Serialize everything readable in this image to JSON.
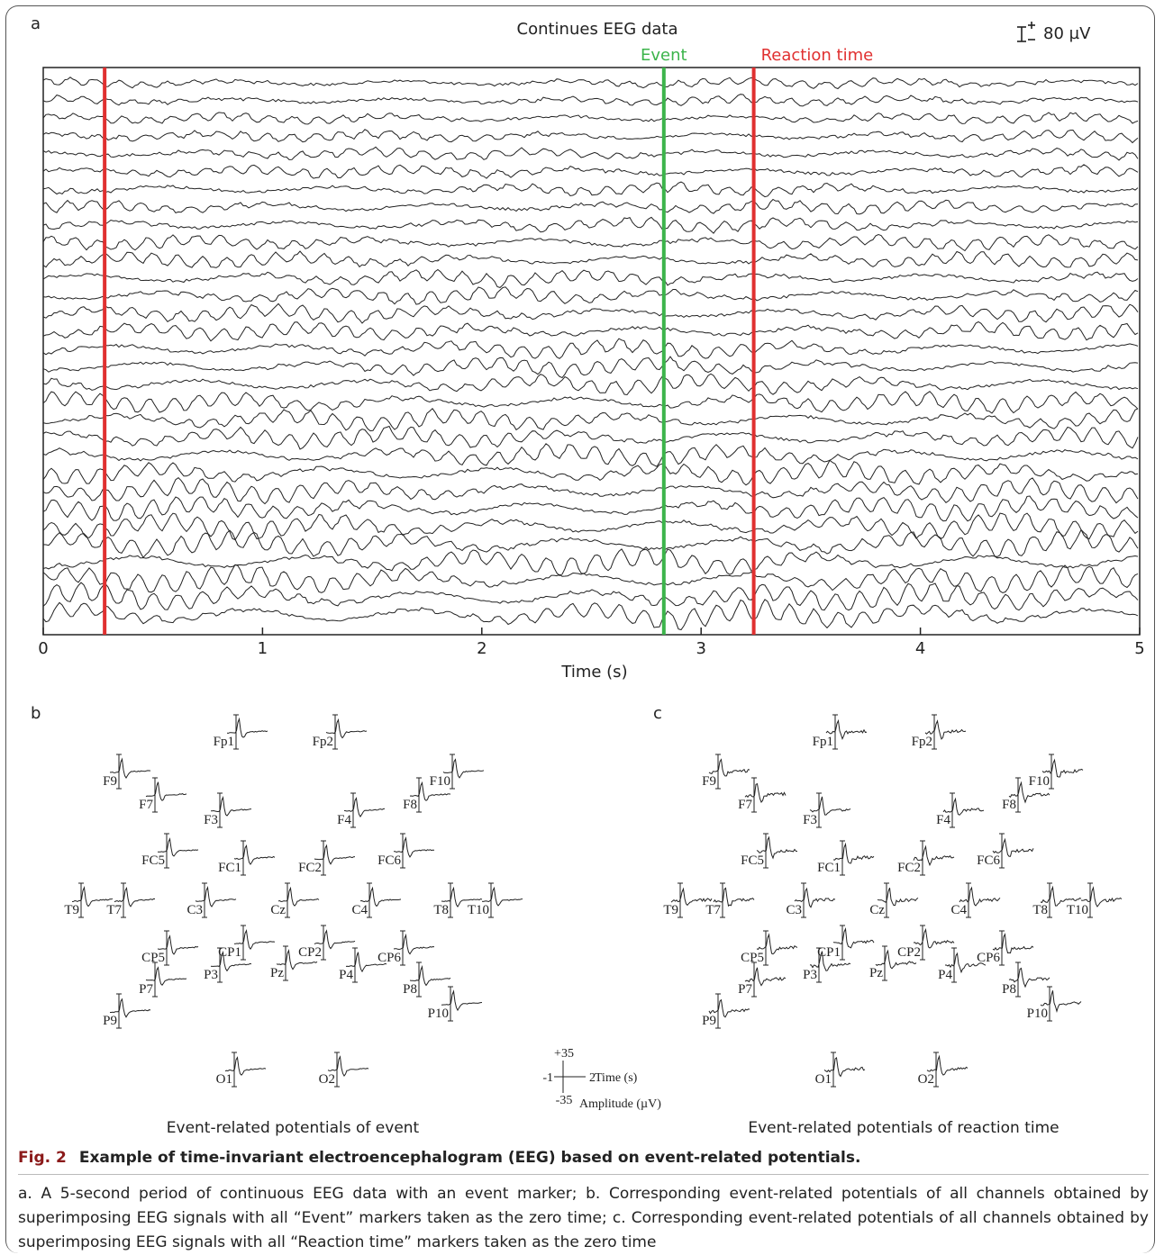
{
  "panel_a": {
    "label": "a",
    "title": "Continues EEG data",
    "scale_label": "80 µV",
    "xlabel": "Time (s)",
    "xlim": [
      0,
      5
    ],
    "xticks": [
      0,
      1,
      2,
      3,
      4,
      5
    ],
    "markers": [
      {
        "name": null,
        "x": 0.28,
        "color": "#e03030"
      },
      {
        "name": "Event",
        "x": 2.83,
        "color": "#3cb44b"
      },
      {
        "name": "Reaction time",
        "x": 3.24,
        "color": "#e03030"
      }
    ]
  },
  "panel_b": {
    "label": "b",
    "caption": "Event-related potentials of event",
    "electrodes": [
      "Fp1",
      "Fp2",
      "F9",
      "F7",
      "F3",
      "F4",
      "F8",
      "F10",
      "FC5",
      "FC1",
      "FC2",
      "FC6",
      "T9",
      "T7",
      "C3",
      "Cz",
      "C4",
      "T8",
      "T10",
      "CP5",
      "CP1",
      "CP2",
      "CP6",
      "P7",
      "P3",
      "Pz",
      "P4",
      "P8",
      "P9",
      "P10",
      "O1",
      "O2"
    ]
  },
  "panel_c": {
    "label": "c",
    "caption": "Event-related potentials of reaction time",
    "electrodes": [
      "Fp1",
      "Fp2",
      "F9",
      "F7",
      "F3",
      "F4",
      "F8",
      "F10",
      "FC5",
      "FC1",
      "FC2",
      "FC6",
      "T9",
      "T7",
      "C3",
      "Cz",
      "C4",
      "T8",
      "T10",
      "CP5",
      "CP1",
      "CP2",
      "CP6",
      "P7",
      "P3",
      "Pz",
      "P4",
      "P8",
      "P9",
      "P10",
      "O1",
      "O2"
    ]
  },
  "erp_legend": {
    "xticks": [
      -1,
      2
    ],
    "yticks": [
      {
        "value": 35,
        "label": "+35"
      },
      -35
    ],
    "xlabel": "Time (s)",
    "ylabel": "Amplitude (µV)"
  },
  "caption": {
    "figure_label": "Fig. 2",
    "title": "Example of time-invariant electroencephalogram (EEG) based on event-related potentials.",
    "text": "a. A 5-second period of continuous EEG data with an event marker; b. Corresponding event-related potentials of all channels obtained by superimposing EEG signals with all “Event” markers taken as the zero time; c. Corresponding event-related potentials of all channels obtained by superimposing EEG signals with all “Reaction time” markers taken as the zero time"
  }
}
